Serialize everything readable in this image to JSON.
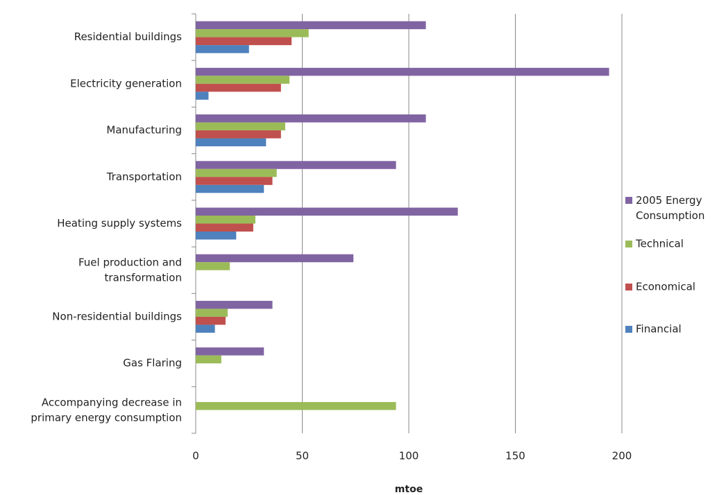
{
  "chart_data": {
    "type": "bar",
    "orientation": "horizontal",
    "categories": [
      "Residential buildings",
      "Electricity generation",
      "Manufacturing",
      "Transportation",
      "Heating supply systems",
      "Fuel production and\ntransformation",
      "Non-residential buildings",
      "Gas Flaring",
      "Accompanying decrease in\nprimary energy consumption"
    ],
    "series": [
      {
        "name": "2005 Energy\nConsumption",
        "color": "#8064a2",
        "values": [
          108,
          194,
          108,
          94,
          123,
          74,
          36,
          32,
          null
        ]
      },
      {
        "name": "Technical",
        "color": "#9bbb59",
        "values": [
          53,
          44,
          42,
          38,
          28,
          16,
          15,
          12,
          94
        ]
      },
      {
        "name": "Economical",
        "color": "#c0504d",
        "values": [
          45,
          40,
          40,
          36,
          27,
          null,
          14,
          null,
          null
        ]
      },
      {
        "name": "Financial",
        "color": "#4f81bd",
        "values": [
          25,
          6,
          33,
          32,
          19,
          null,
          9,
          null,
          null
        ]
      }
    ],
    "x_label": "mtoe",
    "xlim": [
      0,
      200
    ],
    "xticks": [
      0,
      50,
      100,
      150,
      200
    ],
    "grid": true,
    "legend": "right"
  }
}
